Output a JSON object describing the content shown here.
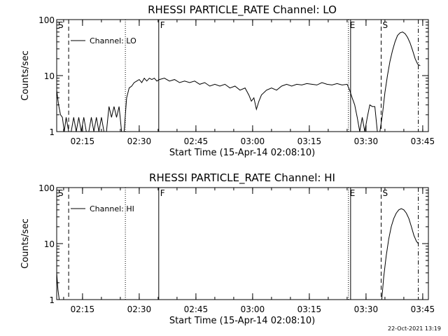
{
  "footer_timestamp": "22-Oct-2021 13:19",
  "chart_data": [
    {
      "type": "line",
      "title": "RHESSI PARTICLE_RATE Channel: LO",
      "xlabel": "Start Time (15-Apr-14 02:08:10)",
      "ylabel": "Counts/sec",
      "yscale": "log",
      "xlim": [
        "02:08:10",
        "03:46:30"
      ],
      "ylim": [
        1,
        100
      ],
      "x_ticks": [
        "02:15",
        "02:30",
        "02:45",
        "03:00",
        "03:15",
        "03:30",
        "03:45"
      ],
      "y_ticks": [
        "1",
        "10",
        "100"
      ],
      "legend": {
        "position": "top-left",
        "entries": [
          "Channel: LO"
        ]
      },
      "markers": [
        {
          "label": "S",
          "time": "02:08:10",
          "style": "solid"
        },
        {
          "label": "",
          "time": "02:11:20",
          "style": "dashed"
        },
        {
          "label": "",
          "time": "02:26:20",
          "style": "dotted"
        },
        {
          "label": "F",
          "time": "02:35:10",
          "style": "solid"
        },
        {
          "label": "E",
          "time": "03:25:20",
          "style": "dotted"
        },
        {
          "label": "",
          "time": "03:25:55",
          "style": "solid"
        },
        {
          "label": "S",
          "time": "03:34:00",
          "style": "dashed"
        },
        {
          "label": "",
          "time": "03:43:50",
          "style": "dashdot"
        }
      ],
      "series": [
        {
          "name": "Channel: LO",
          "x": [
            "02:08:10",
            "02:08:40",
            "02:09:10",
            "02:09:40",
            "02:10:10",
            "02:10:40",
            "02:11:20",
            "02:12:00",
            "02:12:40",
            "02:13:20",
            "02:14:00",
            "02:14:40",
            "02:15:20",
            "02:16:00",
            "02:16:40",
            "02:17:20",
            "02:18:00",
            "02:18:40",
            "02:19:20",
            "02:20:00",
            "02:20:40",
            "02:21:20",
            "02:22:00",
            "02:22:40",
            "02:23:20",
            "02:24:00",
            "02:24:40",
            "02:25:20",
            "02:26:00",
            "02:26:40",
            "02:27:20",
            "02:28:00",
            "02:28:40",
            "02:29:20",
            "02:30:00",
            "02:30:40",
            "02:31:20",
            "02:32:00",
            "02:32:40",
            "02:33:20",
            "02:34:00",
            "02:34:40",
            "02:35:20",
            "02:36:40",
            "02:38:00",
            "02:39:20",
            "02:40:40",
            "02:42:00",
            "02:43:20",
            "02:44:40",
            "02:46:00",
            "02:47:20",
            "02:48:40",
            "02:50:00",
            "02:51:20",
            "02:52:40",
            "02:54:00",
            "02:55:20",
            "02:56:40",
            "02:58:00",
            "02:59:00",
            "02:59:40",
            "03:00:20",
            "03:01:00",
            "03:01:40",
            "03:02:20",
            "03:03:40",
            "03:05:00",
            "03:06:20",
            "03:07:40",
            "03:09:00",
            "03:10:20",
            "03:11:40",
            "03:13:00",
            "03:14:20",
            "03:15:40",
            "03:17:00",
            "03:18:20",
            "03:19:40",
            "03:21:00",
            "03:22:20",
            "03:23:40",
            "03:25:00",
            "03:25:40",
            "03:26:20",
            "03:27:00",
            "03:27:40",
            "03:28:20",
            "03:29:00",
            "03:29:40",
            "03:30:20",
            "03:31:00",
            "03:31:40",
            "03:32:20",
            "03:33:00",
            "03:33:40",
            "03:34:20",
            "03:35:00",
            "03:35:40",
            "03:36:20",
            "03:37:00",
            "03:37:40",
            "03:38:20",
            "03:39:00",
            "03:39:40",
            "03:40:20",
            "03:41:00",
            "03:41:40",
            "03:42:20",
            "03:43:00",
            "03:43:40",
            "03:44:20"
          ],
          "y": [
            5.5,
            3.0,
            2.0,
            1.8,
            1.0,
            1.8,
            1.0,
            1.0,
            1.8,
            1.0,
            1.8,
            1.0,
            1.8,
            1.0,
            1.0,
            1.8,
            1.0,
            1.8,
            1.0,
            1.8,
            1.0,
            1.0,
            2.8,
            1.8,
            2.8,
            1.8,
            2.8,
            1.0,
            1.0,
            4.0,
            6.0,
            6.5,
            7.5,
            8.0,
            8.5,
            7.5,
            9.0,
            8.0,
            9.0,
            8.5,
            9.0,
            8.0,
            8.5,
            9.0,
            8.0,
            8.5,
            7.5,
            8.0,
            7.5,
            8.0,
            7.0,
            7.5,
            6.5,
            7.0,
            6.5,
            7.0,
            6.0,
            6.5,
            5.5,
            6.0,
            4.5,
            3.5,
            4.0,
            2.5,
            3.5,
            4.5,
            5.5,
            6.0,
            5.5,
            6.5,
            7.0,
            6.5,
            7.0,
            6.8,
            7.2,
            7.0,
            6.8,
            7.5,
            7.0,
            6.8,
            7.2,
            6.8,
            7.0,
            5.5,
            4.0,
            3.0,
            1.8,
            1.0,
            1.8,
            1.0,
            1.8,
            3.0,
            2.8,
            2.8,
            1.0,
            1.0,
            2.0,
            5.0,
            10,
            18,
            28,
            40,
            52,
            58,
            60,
            56,
            48,
            38,
            28,
            20,
            16,
            15
          ]
        }
      ]
    },
    {
      "type": "line",
      "title": "RHESSI PARTICLE_RATE Channel: HI",
      "xlabel": "Start Time (15-Apr-14 02:08:10)",
      "ylabel": "Counts/sec",
      "yscale": "log",
      "xlim": [
        "02:08:10",
        "03:46:30"
      ],
      "ylim": [
        1,
        100
      ],
      "x_ticks": [
        "02:15",
        "02:30",
        "02:45",
        "03:00",
        "03:15",
        "03:30",
        "03:45"
      ],
      "y_ticks": [
        "1",
        "10",
        "100"
      ],
      "legend": {
        "position": "top-left",
        "entries": [
          "Channel: HI"
        ]
      },
      "markers": [
        {
          "label": "S",
          "time": "02:08:10",
          "style": "solid"
        },
        {
          "label": "",
          "time": "02:11:20",
          "style": "dashed"
        },
        {
          "label": "",
          "time": "02:26:20",
          "style": "dotted"
        },
        {
          "label": "F",
          "time": "02:35:10",
          "style": "solid"
        },
        {
          "label": "E",
          "time": "03:25:20",
          "style": "dotted"
        },
        {
          "label": "",
          "time": "03:25:55",
          "style": "solid"
        },
        {
          "label": "S",
          "time": "03:34:00",
          "style": "dashed"
        },
        {
          "label": "",
          "time": "03:43:50",
          "style": "dashdot"
        }
      ],
      "series": [
        {
          "name": "Channel: HI",
          "x": [
            "02:08:10",
            "02:08:30",
            "02:08:50",
            "03:34:10",
            "03:34:40",
            "03:35:20",
            "03:36:00",
            "03:36:40",
            "03:37:20",
            "03:38:00",
            "03:38:40",
            "03:39:20",
            "03:40:00",
            "03:40:40",
            "03:41:20",
            "03:42:00",
            "03:42:40",
            "03:43:20",
            "03:43:50"
          ],
          "y": [
            3.0,
            1.5,
            1.0,
            1.0,
            2.5,
            6.0,
            12,
            20,
            28,
            35,
            40,
            42,
            40,
            35,
            28,
            20,
            14,
            11,
            10
          ]
        }
      ]
    }
  ]
}
